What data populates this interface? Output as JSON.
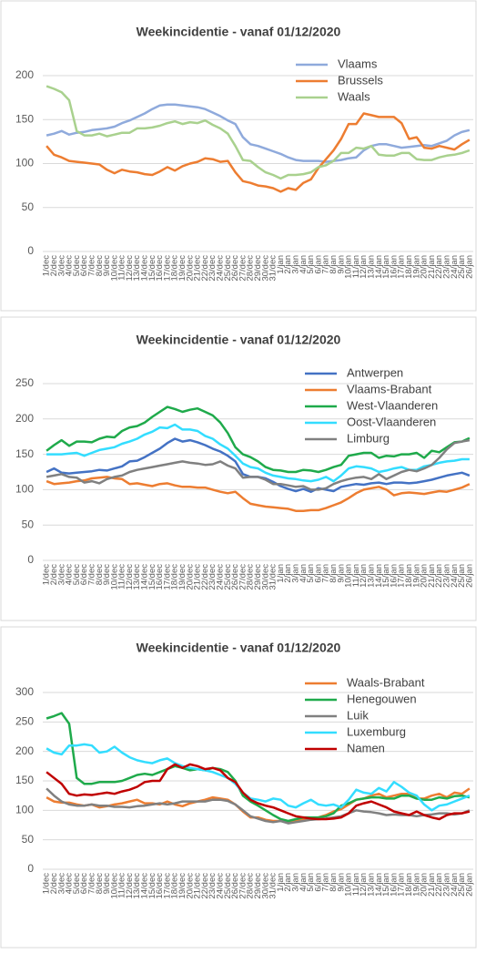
{
  "chart_data": [
    {
      "type": "line",
      "title": "Weekincidentie  - vanaf 01/12/2020",
      "categories": [
        "1/dec",
        "2/dec",
        "3/dec",
        "4/dec",
        "5/dec",
        "6/dec",
        "7/dec",
        "8/dec",
        "9/dec",
        "10/dec",
        "11/dec",
        "12/dec",
        "13/dec",
        "14/dec",
        "15/dec",
        "16/dec",
        "17/dec",
        "18/dec",
        "19/dec",
        "20/dec",
        "21/dec",
        "22/dec",
        "23/dec",
        "24/dec",
        "25/dec",
        "26/dec",
        "27/dec",
        "28/dec",
        "29/dec",
        "30/dec",
        "31/dec",
        "1/jan",
        "2/jan",
        "3/jan",
        "4/jan",
        "5/jan",
        "6/jan",
        "7/jan",
        "8/jan",
        "9/jan",
        "10/jan",
        "11/jan",
        "12/jan",
        "13/jan",
        "14/jan",
        "15/jan",
        "16/jan",
        "17/jan",
        "18/jan",
        "19/jan",
        "20/jan",
        "21/jan",
        "22/jan",
        "23/jan",
        "24/jan",
        "25/jan",
        "26/jan"
      ],
      "series": [
        {
          "name": "Vlaams",
          "color": "#8faadc",
          "values": [
            132,
            134,
            137,
            133,
            135,
            136,
            138,
            139,
            140,
            142,
            146,
            149,
            153,
            157,
            162,
            166,
            167,
            167,
            166,
            165,
            164,
            162,
            158,
            154,
            149,
            145,
            130,
            122,
            120,
            117,
            114,
            111,
            107,
            104,
            103,
            103,
            103,
            102,
            103,
            104,
            106,
            107,
            115,
            120,
            122,
            122,
            120,
            118,
            119,
            120,
            121,
            120,
            123,
            126,
            132,
            136,
            138
          ]
        },
        {
          "name": "Brussels",
          "color": "#ed7d31",
          "values": [
            120,
            110,
            107,
            103,
            102,
            101,
            100,
            99,
            93,
            89,
            93,
            91,
            90,
            88,
            87,
            91,
            96,
            92,
            97,
            100,
            102,
            106,
            105,
            102,
            103,
            90,
            80,
            78,
            75,
            74,
            72,
            68,
            72,
            70,
            78,
            82,
            95,
            105,
            115,
            128,
            145,
            145,
            157,
            155,
            153,
            153,
            153,
            146,
            128,
            130,
            118,
            117,
            120,
            118,
            116,
            122,
            127
          ]
        },
        {
          "name": "Waals",
          "color": "#a9d18e",
          "values": [
            188,
            185,
            181,
            172,
            137,
            132,
            132,
            134,
            131,
            133,
            135,
            135,
            140,
            140,
            141,
            143,
            146,
            148,
            145,
            147,
            146,
            149,
            144,
            140,
            134,
            120,
            104,
            103,
            96,
            90,
            87,
            83,
            87,
            87,
            88,
            90,
            96,
            98,
            103,
            112,
            112,
            118,
            117,
            120,
            110,
            109,
            109,
            112,
            112,
            105,
            104,
            104,
            107,
            109,
            110,
            112,
            115
          ]
        }
      ],
      "ylim": [
        0,
        200
      ],
      "yticks": [
        0,
        50,
        100,
        150,
        200
      ],
      "grid": true,
      "legend": "top-right"
    },
    {
      "type": "line",
      "title": "Weekincidentie  - vanaf 01/12/2020",
      "categories": [
        "1/dec",
        "2/dec",
        "3/dec",
        "4/dec",
        "5/dec",
        "6/dec",
        "7/dec",
        "8/dec",
        "9/dec",
        "10/dec",
        "11/dec",
        "12/dec",
        "13/dec",
        "14/dec",
        "15/dec",
        "16/dec",
        "17/dec",
        "18/dec",
        "19/dec",
        "20/dec",
        "21/dec",
        "22/dec",
        "23/dec",
        "24/dec",
        "25/dec",
        "26/dec",
        "27/dec",
        "28/dec",
        "29/dec",
        "30/dec",
        "31/dec",
        "1/jan",
        "2/jan",
        "3/jan",
        "4/jan",
        "5/jan",
        "6/jan",
        "7/jan",
        "8/jan",
        "9/jan",
        "10/jan",
        "11/jan",
        "12/jan",
        "13/jan",
        "14/jan",
        "15/jan",
        "16/jan",
        "17/jan",
        "18/jan",
        "19/jan",
        "20/jan",
        "21/jan",
        "22/jan",
        "23/jan",
        "24/jan",
        "25/jan",
        "26/jan"
      ],
      "series": [
        {
          "name": "Antwerpen",
          "color": "#4472c4",
          "values": [
            125,
            130,
            124,
            123,
            124,
            125,
            126,
            128,
            127,
            130,
            133,
            140,
            141,
            146,
            152,
            158,
            166,
            172,
            168,
            170,
            167,
            163,
            158,
            154,
            148,
            140,
            122,
            118,
            118,
            116,
            111,
            105,
            101,
            98,
            101,
            97,
            102,
            100,
            98,
            104,
            106,
            108,
            107,
            109,
            110,
            108,
            110,
            110,
            109,
            110,
            112,
            114,
            117,
            120,
            122,
            124,
            120
          ]
        },
        {
          "name": "Vlaams-Brabant",
          "color": "#ed7d31",
          "values": [
            112,
            108,
            109,
            110,
            112,
            113,
            116,
            117,
            118,
            116,
            115,
            108,
            109,
            107,
            105,
            108,
            109,
            106,
            104,
            104,
            103,
            103,
            100,
            97,
            95,
            97,
            88,
            80,
            78,
            76,
            75,
            74,
            73,
            70,
            70,
            71,
            71,
            74,
            78,
            82,
            88,
            95,
            100,
            102,
            104,
            100,
            92,
            95,
            96,
            95,
            94,
            96,
            98,
            97,
            100,
            103,
            108
          ]
        },
        {
          "name": "West-Vlaanderen",
          "color": "#1faa4b",
          "values": [
            155,
            163,
            170,
            162,
            168,
            168,
            167,
            172,
            175,
            174,
            183,
            188,
            190,
            195,
            203,
            210,
            217,
            214,
            210,
            213,
            215,
            210,
            205,
            195,
            180,
            160,
            150,
            146,
            140,
            132,
            128,
            127,
            125,
            125,
            128,
            127,
            125,
            128,
            132,
            135,
            148,
            150,
            152,
            152,
            145,
            148,
            147,
            150,
            150,
            152,
            145,
            155,
            153,
            160,
            167,
            168,
            173
          ]
        },
        {
          "name": "Oost-Vlaanderen",
          "color": "#33ddff",
          "values": [
            150,
            150,
            150,
            151,
            152,
            148,
            152,
            156,
            158,
            160,
            165,
            168,
            172,
            178,
            182,
            188,
            187,
            192,
            185,
            185,
            183,
            176,
            172,
            164,
            158,
            148,
            137,
            132,
            130,
            124,
            120,
            118,
            116,
            115,
            113,
            112,
            114,
            118,
            112,
            120,
            130,
            133,
            132,
            130,
            125,
            127,
            130,
            132,
            128,
            128,
            133,
            135,
            138,
            140,
            141,
            143,
            143
          ]
        },
        {
          "name": "Limburg",
          "color": "#808080",
          "values": [
            118,
            120,
            122,
            118,
            117,
            110,
            112,
            109,
            115,
            118,
            120,
            125,
            128,
            130,
            132,
            134,
            136,
            138,
            140,
            138,
            137,
            135,
            136,
            140,
            134,
            130,
            117,
            118,
            118,
            114,
            108,
            108,
            106,
            104,
            105,
            100,
            100,
            102,
            108,
            112,
            115,
            117,
            118,
            115,
            122,
            115,
            120,
            125,
            128,
            126,
            130,
            135,
            145,
            157,
            166,
            168,
            170
          ]
        }
      ],
      "ylim": [
        0,
        250
      ],
      "yticks": [
        0,
        50,
        100,
        150,
        200,
        250
      ],
      "grid": true,
      "legend": "top-right"
    },
    {
      "type": "line",
      "title": "Weekincidentie  - vanaf 01/12/2020",
      "categories": [
        "1/dec",
        "2/dec",
        "3/dec",
        "4/dec",
        "5/dec",
        "6/dec",
        "7/dec",
        "8/dec",
        "9/dec",
        "10/dec",
        "11/dec",
        "12/dec",
        "13/dec",
        "14/dec",
        "15/dec",
        "16/dec",
        "17/dec",
        "18/dec",
        "19/dec",
        "20/dec",
        "21/dec",
        "22/dec",
        "23/dec",
        "24/dec",
        "25/dec",
        "26/dec",
        "27/dec",
        "28/dec",
        "29/dec",
        "30/dec",
        "31/dec",
        "1/jan",
        "2/jan",
        "3/jan",
        "4/jan",
        "5/jan",
        "6/jan",
        "7/jan",
        "8/jan",
        "9/jan",
        "10/jan",
        "11/jan",
        "12/jan",
        "13/jan",
        "14/jan",
        "15/jan",
        "16/jan",
        "17/jan",
        "18/jan",
        "19/jan",
        "20/jan",
        "21/jan",
        "22/jan",
        "23/jan",
        "24/jan",
        "25/jan",
        "26/jan"
      ],
      "series": [
        {
          "name": "Waals-Brabant",
          "color": "#ed7d31",
          "values": [
            122,
            115,
            113,
            113,
            110,
            108,
            110,
            105,
            107,
            110,
            112,
            115,
            118,
            112,
            112,
            110,
            115,
            110,
            107,
            112,
            115,
            118,
            122,
            120,
            118,
            110,
            98,
            88,
            88,
            84,
            82,
            82,
            80,
            83,
            85,
            86,
            88,
            92,
            98,
            102,
            110,
            118,
            120,
            125,
            128,
            122,
            125,
            128,
            128,
            120,
            120,
            125,
            128,
            122,
            130,
            128,
            137
          ]
        },
        {
          "name": "Henegouwen",
          "color": "#1faa4b",
          "values": [
            256,
            260,
            265,
            247,
            155,
            145,
            145,
            148,
            148,
            148,
            150,
            155,
            160,
            162,
            160,
            165,
            170,
            175,
            172,
            168,
            170,
            168,
            172,
            170,
            165,
            150,
            125,
            115,
            108,
            100,
            92,
            85,
            82,
            85,
            88,
            88,
            88,
            90,
            95,
            108,
            112,
            118,
            120,
            122,
            122,
            120,
            120,
            125,
            125,
            120,
            118,
            118,
            122,
            120,
            124,
            125,
            122
          ]
        },
        {
          "name": "Luik",
          "color": "#808080",
          "values": [
            137,
            125,
            115,
            110,
            108,
            108,
            110,
            108,
            108,
            106,
            106,
            105,
            107,
            108,
            110,
            112,
            110,
            112,
            115,
            115,
            115,
            115,
            118,
            118,
            116,
            110,
            100,
            90,
            86,
            82,
            80,
            82,
            78,
            80,
            82,
            84,
            85,
            86,
            88,
            90,
            95,
            100,
            98,
            97,
            95,
            92,
            93,
            92,
            92,
            90,
            92,
            93,
            95,
            95,
            93,
            95,
            100
          ]
        },
        {
          "name": "Luxemburg",
          "color": "#33ddff",
          "values": [
            205,
            198,
            195,
            210,
            210,
            212,
            210,
            198,
            200,
            208,
            198,
            190,
            185,
            182,
            180,
            185,
            188,
            180,
            175,
            172,
            170,
            168,
            165,
            160,
            155,
            145,
            130,
            120,
            118,
            115,
            120,
            118,
            108,
            105,
            112,
            118,
            110,
            108,
            110,
            105,
            118,
            135,
            130,
            128,
            138,
            132,
            148,
            140,
            130,
            125,
            110,
            100,
            108,
            110,
            115,
            120,
            125
          ]
        },
        {
          "name": "Namen",
          "color": "#c00000",
          "values": [
            165,
            155,
            145,
            128,
            125,
            127,
            126,
            128,
            130,
            128,
            132,
            135,
            140,
            148,
            150,
            150,
            170,
            178,
            172,
            178,
            175,
            170,
            172,
            168,
            155,
            148,
            130,
            118,
            112,
            108,
            105,
            100,
            95,
            90,
            88,
            86,
            85,
            85,
            86,
            88,
            95,
            108,
            112,
            115,
            110,
            105,
            98,
            95,
            92,
            98,
            92,
            88,
            85,
            92,
            95,
            95,
            98
          ]
        }
      ],
      "ylim": [
        0,
        300
      ],
      "yticks": [
        0,
        50,
        100,
        150,
        200,
        250,
        300
      ],
      "grid": true,
      "legend": "top-right"
    }
  ]
}
